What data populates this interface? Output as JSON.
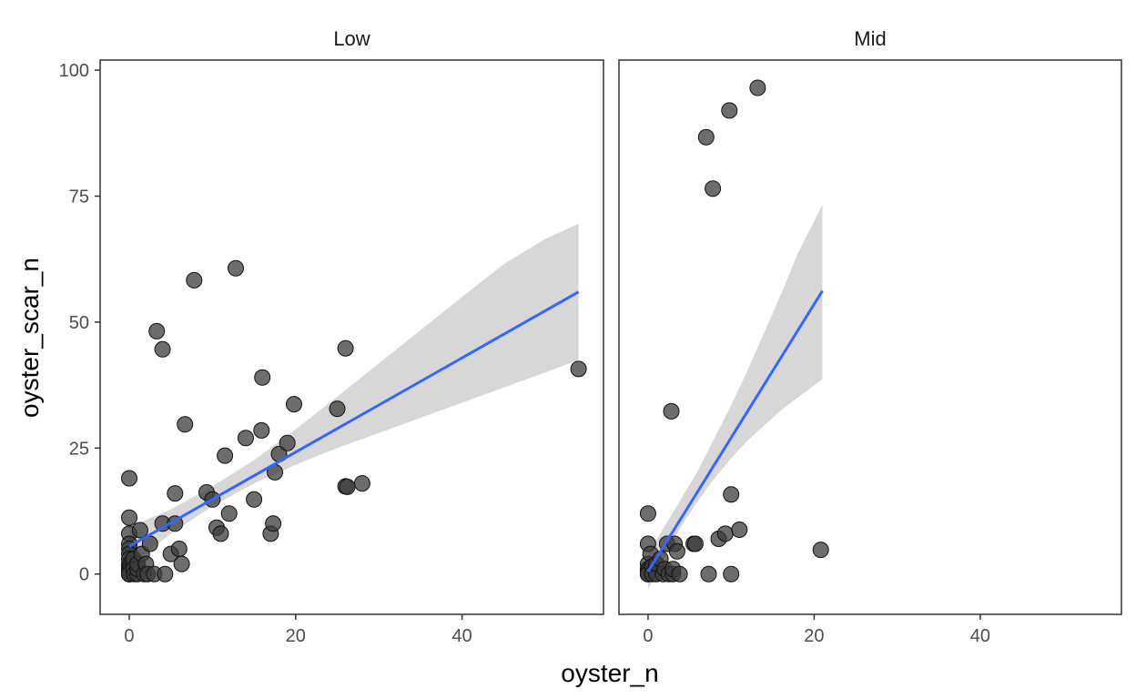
{
  "chart_data": {
    "type": "scatter",
    "xlabel": "oyster_n",
    "ylabel": "oyster_scar_n",
    "xlim": [
      -3.5,
      57
    ],
    "ylim": [
      -8,
      102
    ],
    "x_ticks": [
      0,
      20,
      40
    ],
    "y_ticks": [
      0,
      25,
      50,
      75,
      100
    ],
    "grid": false,
    "legend": "none",
    "colors": {
      "point_fill": "#3c3c3c",
      "point_stroke": "#111111",
      "fit_line": "#3366ff",
      "ribbon": "#d3d3d3",
      "panel_border": "#333333"
    },
    "panels": [
      {
        "label": "Low",
        "points": [
          [
            0,
            19
          ],
          [
            0,
            11.2
          ],
          [
            0,
            8
          ],
          [
            0,
            6
          ],
          [
            0,
            5
          ],
          [
            0,
            4
          ],
          [
            0,
            3
          ],
          [
            0,
            2
          ],
          [
            0,
            1.5
          ],
          [
            0,
            1
          ],
          [
            0,
            0.5
          ],
          [
            0,
            0
          ],
          [
            0,
            0
          ],
          [
            0,
            0
          ],
          [
            0,
            0
          ],
          [
            0.5,
            3
          ],
          [
            0.5,
            1
          ],
          [
            0.6,
            0
          ],
          [
            1,
            0
          ],
          [
            1,
            1
          ],
          [
            1,
            2
          ],
          [
            1.3,
            8.7
          ],
          [
            1.5,
            4
          ],
          [
            1.8,
            0
          ],
          [
            2,
            2
          ],
          [
            2.2,
            0
          ],
          [
            2.5,
            6
          ],
          [
            3,
            0
          ],
          [
            3.3,
            48.2
          ],
          [
            4,
            44.6
          ],
          [
            4,
            10
          ],
          [
            4.3,
            0
          ],
          [
            5,
            4
          ],
          [
            5.5,
            16
          ],
          [
            5.5,
            10
          ],
          [
            6,
            5
          ],
          [
            6.3,
            2
          ],
          [
            6.7,
            29.7
          ],
          [
            7.8,
            58.3
          ],
          [
            9.3,
            16.2
          ],
          [
            10,
            14.8
          ],
          [
            10.5,
            9.2
          ],
          [
            11,
            8
          ],
          [
            11.5,
            23.5
          ],
          [
            12,
            12
          ],
          [
            12.8,
            60.7
          ],
          [
            14,
            27
          ],
          [
            15,
            14.8
          ],
          [
            15.9,
            28.5
          ],
          [
            16,
            39
          ],
          [
            17,
            8
          ],
          [
            17.3,
            10
          ],
          [
            17.5,
            20.2
          ],
          [
            18,
            23.8
          ],
          [
            19,
            26
          ],
          [
            19.8,
            33.7
          ],
          [
            25,
            32.8
          ],
          [
            26,
            44.8
          ],
          [
            26,
            17.4
          ],
          [
            26.2,
            17.3
          ],
          [
            28,
            18
          ],
          [
            54,
            40.7
          ]
        ],
        "fit": {
          "x": [
            0,
            54
          ],
          "y": [
            5.5,
            56.0
          ]
        },
        "ribbon": {
          "x": [
            0,
            5,
            10,
            15,
            20,
            25,
            30,
            35,
            40,
            45,
            50,
            54
          ],
          "lower": [
            1.6,
            8.0,
            13.5,
            18.0,
            21.7,
            25.0,
            28.0,
            31.0,
            34.0,
            37.0,
            40.0,
            42.5
          ],
          "upper": [
            9.4,
            12.8,
            17.4,
            22.6,
            28.7,
            35.2,
            41.8,
            48.4,
            55.0,
            61.5,
            66.5,
            69.5
          ]
        }
      },
      {
        "label": "Mid",
        "points": [
          [
            0,
            12
          ],
          [
            0,
            6
          ],
          [
            0,
            2
          ],
          [
            0,
            1
          ],
          [
            0,
            0.5
          ],
          [
            0,
            0
          ],
          [
            0,
            0
          ],
          [
            0.3,
            4
          ],
          [
            0.5,
            1.5
          ],
          [
            0.5,
            0
          ],
          [
            1,
            0
          ],
          [
            1,
            2
          ],
          [
            1.5,
            3
          ],
          [
            1.8,
            0
          ],
          [
            2,
            1
          ],
          [
            2.3,
            6
          ],
          [
            2.5,
            0
          ],
          [
            2.8,
            32.3
          ],
          [
            3,
            0
          ],
          [
            3,
            1
          ],
          [
            3.2,
            6
          ],
          [
            3.5,
            4.5
          ],
          [
            3.8,
            0
          ],
          [
            5.5,
            6
          ],
          [
            5.7,
            6
          ],
          [
            7,
            86.7
          ],
          [
            7.3,
            0
          ],
          [
            7.8,
            76.5
          ],
          [
            8.5,
            7
          ],
          [
            9.3,
            8
          ],
          [
            9.8,
            92
          ],
          [
            10,
            15.8
          ],
          [
            10,
            0
          ],
          [
            11,
            8.8
          ],
          [
            13.2,
            96.5
          ],
          [
            20.8,
            4.8
          ]
        ],
        "fit": {
          "x": [
            0,
            21
          ],
          "y": [
            0.5,
            56.2
          ]
        },
        "ribbon": {
          "x": [
            0,
            2,
            4,
            6,
            8,
            10,
            12,
            14,
            16,
            18,
            21
          ],
          "lower": [
            -3,
            3.5,
            9.5,
            14.5,
            19.0,
            23.0,
            26.5,
            29.5,
            32.5,
            35.0,
            38.7
          ],
          "upper": [
            4,
            9.5,
            15.0,
            20.5,
            27.0,
            33.5,
            40.5,
            48.0,
            55.5,
            63.5,
            73.3
          ]
        }
      }
    ]
  }
}
